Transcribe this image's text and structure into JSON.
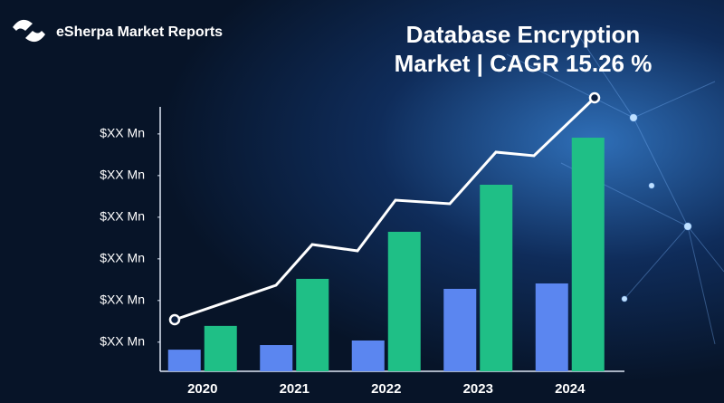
{
  "chart_data": {
    "type": "bar",
    "brand": "eSherpa Market Reports",
    "title": [
      "Database Encryption",
      "Market | CAGR 15.26 %"
    ],
    "categories": [
      "2020",
      "2021",
      "2022",
      "2023",
      "2024"
    ],
    "series": [
      {
        "color": "#5b86f0",
        "values": [
          0.52,
          0.63,
          0.74,
          1.98,
          2.11
        ]
      },
      {
        "color": "#1fbf86",
        "values": [
          1.09,
          2.22,
          3.35,
          4.48,
          5.61
        ]
      }
    ],
    "ylim": [
      0,
      6.35
    ],
    "yticks": [
      {
        "value": 0.7,
        "label": "$XX Mn"
      },
      {
        "value": 1.7,
        "label": "$XX Mn"
      },
      {
        "value": 2.7,
        "label": "$XX Mn"
      },
      {
        "value": 3.7,
        "label": "$XX Mn"
      },
      {
        "value": 4.7,
        "label": "$XX Mn"
      },
      {
        "value": 5.7,
        "label": "$XX Mn"
      }
    ]
  }
}
